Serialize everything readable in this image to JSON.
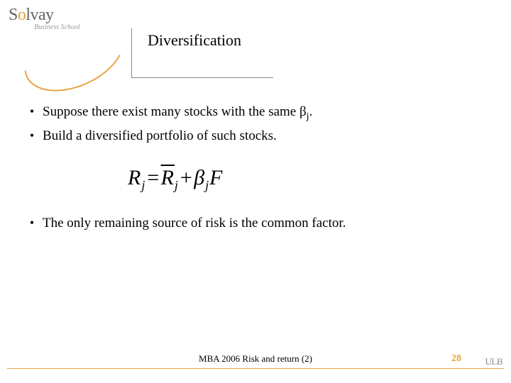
{
  "logo": {
    "name_part1": "S",
    "name_accent": "o",
    "name_part2": "lvay",
    "subtitle": "Business School"
  },
  "title": "Diversification",
  "bullets": {
    "b1_pre": "Suppose there exist many stocks with the same β",
    "b1_sub": "j",
    "b1_post": ".",
    "b2": "Build a diversified portfolio of such stocks.",
    "b3": "The only remaining source of risk is the common factor."
  },
  "equation": {
    "R": "R",
    "j": "j",
    "eq": "=",
    "Rbar": "R",
    "plus": "+",
    "beta": "β",
    "F": "F"
  },
  "footer": {
    "text": "MBA 2006 Risk and return (2)",
    "page": "28",
    "ulb": "ULB"
  }
}
